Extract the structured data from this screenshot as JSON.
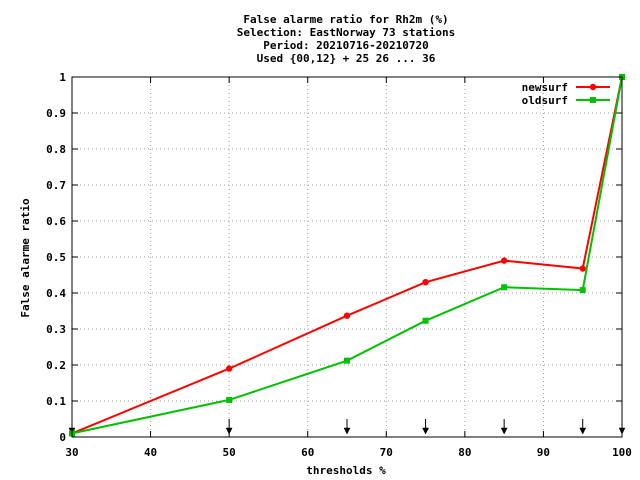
{
  "chart_data": {
    "type": "line",
    "title_lines": [
      "False alarme ratio  for Rh2m (%)",
      "Selection: EastNorway     73 stations",
      "Period: 20210716-20210720",
      "Used {00,12} + 25 26 ... 36"
    ],
    "xlabel": "thresholds %",
    "ylabel": "False alarme ratio",
    "xlim": [
      30,
      100
    ],
    "ylim": [
      0,
      1
    ],
    "x_ticks": [
      "30",
      "40",
      "50",
      "60",
      "70",
      "80",
      "90",
      "100"
    ],
    "y_ticks": [
      "0",
      "0.1",
      "0.2",
      "0.3",
      "0.4",
      "0.5",
      "0.6",
      "0.7",
      "0.8",
      "0.9",
      "1"
    ],
    "grid": true,
    "legend_position": "top-right",
    "threshold_markers": [
      30,
      50,
      65,
      75,
      85,
      95,
      100
    ],
    "series": [
      {
        "name": "newsurf",
        "color": "#ff0000",
        "x": [
          30,
          50,
          65,
          75,
          85,
          95,
          100
        ],
        "y": [
          0.01,
          0.19,
          0.337,
          0.43,
          0.49,
          0.468,
          1.0
        ]
      },
      {
        "name": "oldsurf",
        "color": "#00c000",
        "x": [
          30,
          50,
          65,
          75,
          85,
          95,
          100
        ],
        "y": [
          0.01,
          0.103,
          0.212,
          0.323,
          0.416,
          0.408,
          1.0
        ]
      }
    ]
  }
}
